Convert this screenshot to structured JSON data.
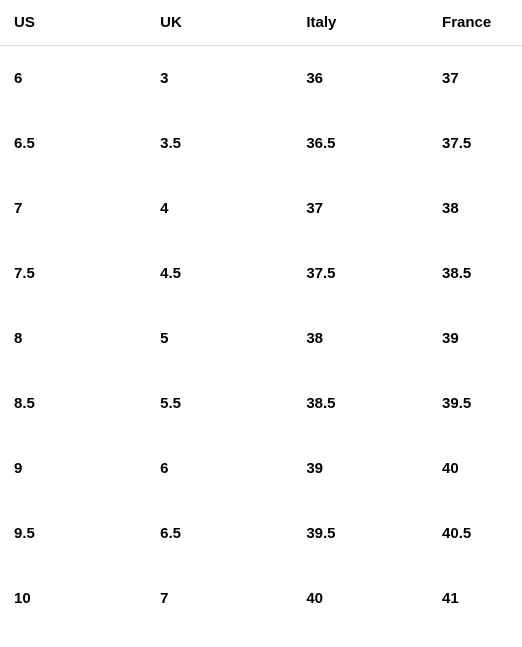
{
  "size_chart": {
    "type": "table",
    "background_color": "#ffffff",
    "text_color": "#000000",
    "header_border_color": "#dcdcdc",
    "font_family": "Arial, Helvetica, sans-serif",
    "header_fontsize": 15,
    "cell_fontsize": 15,
    "font_weight": 700,
    "column_widths_pct": [
      28,
      28,
      26,
      18
    ],
    "columns": [
      "US",
      "UK",
      "Italy",
      "France"
    ],
    "rows": [
      [
        "6",
        "3",
        "36",
        "37"
      ],
      [
        "6.5",
        "3.5",
        "36.5",
        "37.5"
      ],
      [
        "7",
        "4",
        "37",
        "38"
      ],
      [
        "7.5",
        "4.5",
        "37.5",
        "38.5"
      ],
      [
        "8",
        "5",
        "38",
        "39"
      ],
      [
        "8.5",
        "5.5",
        "38.5",
        "39.5"
      ],
      [
        "9",
        "6",
        "39",
        "40"
      ],
      [
        "9.5",
        "6.5",
        "39.5",
        "40.5"
      ],
      [
        "10",
        "7",
        "40",
        "41"
      ]
    ]
  }
}
